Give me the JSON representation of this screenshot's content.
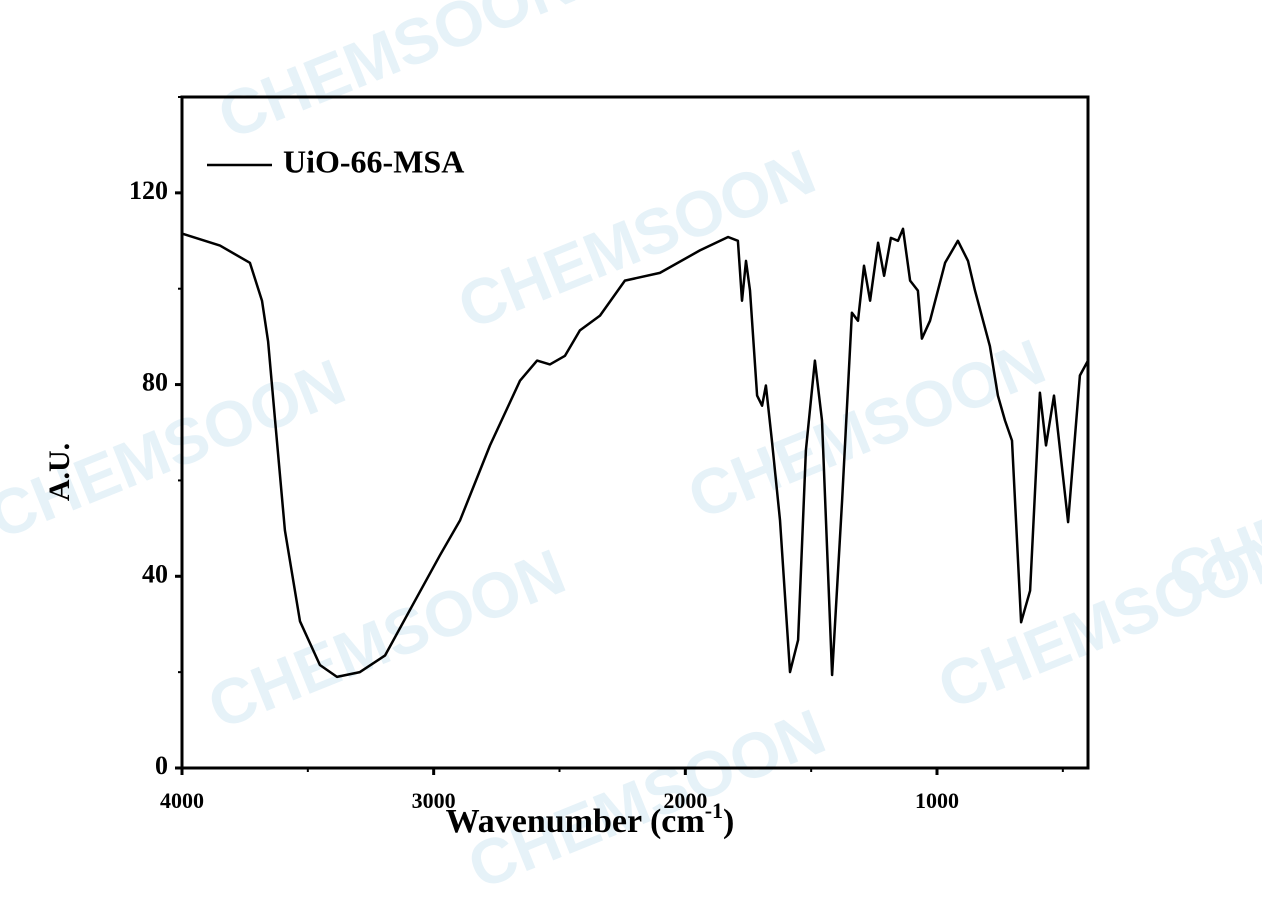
{
  "chart_data": {
    "type": "line",
    "ylabel": "A.U.",
    "xlabel": "Wavenumber (cm",
    "xlabel_sup": "-1",
    "xlabel_end": ")",
    "watermark": "CHEMSOON",
    "legend": "top-left",
    "xlim": [
      4000,
      400
    ],
    "ylim": [
      0,
      140
    ],
    "xticks": [
      4000,
      3000,
      2000,
      1000
    ],
    "minor_xticks": [
      3500,
      2500,
      1500,
      500
    ],
    "yticks": [
      0,
      40,
      80,
      120
    ],
    "minor_yticks": [
      20,
      60,
      100,
      140
    ],
    "x": [
      4000,
      3849,
      3730,
      3682,
      3658,
      3630,
      3591,
      3531,
      3452,
      3384,
      3293,
      3193,
      3094,
      2975,
      2895,
      2776,
      2657,
      2589,
      2538,
      2478,
      2419,
      2339,
      2240,
      2101,
      1942,
      1830,
      1791,
      1775,
      1759,
      1743,
      1715,
      1695,
      1680,
      1656,
      1624,
      1584,
      1552,
      1521,
      1485,
      1457,
      1417,
      1377,
      1338,
      1314,
      1290,
      1266,
      1234,
      1210,
      1183,
      1155,
      1135,
      1107,
      1076,
      1060,
      1028,
      968,
      917,
      877,
      849,
      790,
      758,
      730,
      702,
      666,
      630,
      591,
      567,
      535,
      479,
      432,
      400
    ],
    "series": [
      {
        "name": "UiO-66-MSA",
        "color": "#000000",
        "values": [
          111.5,
          109,
          105.4,
          97.5,
          89,
          72.5,
          49.6,
          30.6,
          21.5,
          19,
          20,
          23.5,
          33,
          44.4,
          51.7,
          67.3,
          80.8,
          85,
          84.2,
          86,
          91.3,
          94.4,
          101.7,
          103.3,
          108,
          110.8,
          110,
          97.5,
          105.8,
          99.6,
          77.7,
          75.6,
          79.8,
          68.3,
          51.7,
          20,
          26.7,
          66.3,
          85,
          72.5,
          19.4,
          55.8,
          95,
          93.3,
          104.8,
          97.5,
          109.6,
          102.7,
          110.6,
          110,
          112.5,
          101.7,
          99.6,
          89.6,
          93.3,
          105.4,
          110,
          105.8,
          99.6,
          88,
          77.7,
          72.5,
          68.3,
          30.4,
          37,
          78.3,
          67.3,
          77.7,
          51.3,
          81.9,
          85
        ]
      }
    ]
  }
}
